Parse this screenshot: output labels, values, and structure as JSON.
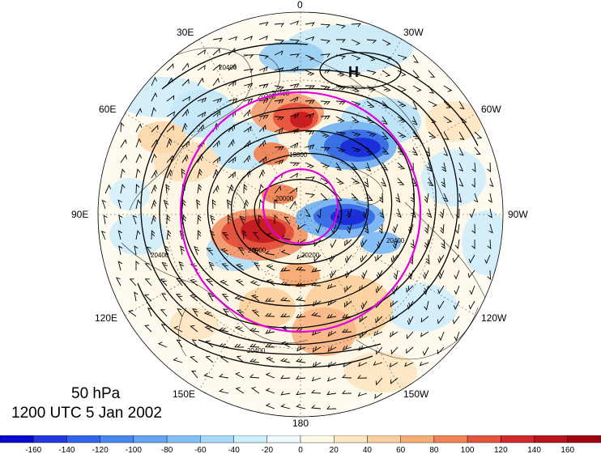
{
  "caption": {
    "level": "50 hPa",
    "time": "1200 UTC 5 Jan 2002"
  },
  "map": {
    "projection": "north-polar-stereographic",
    "longitude_labels": [
      "0",
      "30W",
      "60W",
      "90W",
      "120W",
      "150W",
      "180",
      "150E",
      "120E",
      "90E",
      "60E",
      "30E"
    ],
    "high_marker": "H",
    "contour_labels": [
      "20400",
      "20200",
      "19800",
      "20000",
      "20000",
      "20200",
      "20400",
      "20400",
      "20400",
      "20400"
    ],
    "circle_color": "#e000e0",
    "contour_color": "#000000"
  },
  "colorbar": {
    "ticks": [
      "-160",
      "-140",
      "-120",
      "-100",
      "-80",
      "-60",
      "-40",
      "-20",
      "0",
      "20",
      "40",
      "60",
      "80",
      "100",
      "120",
      "140",
      "160"
    ],
    "colors": [
      "#0b0bd0",
      "#2437e0",
      "#2f64ec",
      "#4a86f0",
      "#67a3f4",
      "#84c0f7",
      "#a8d9f8",
      "#cdeefb",
      "#eefaff",
      "#fffbe8",
      "#fde7c4",
      "#fbcf9d",
      "#f6ad78",
      "#f08358",
      "#e4553e",
      "#d22a2a",
      "#b8141c",
      "#a0060f"
    ]
  }
}
